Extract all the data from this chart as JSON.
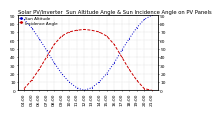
{
  "title": "Solar PV/Inverter  Sun Altitude Angle & Sun Incidence Angle on PV Panels",
  "x_hours": [
    "04:00",
    "05:00",
    "06:00",
    "07:00",
    "08:00",
    "09:00",
    "10:00",
    "11:00",
    "12:00",
    "13:00",
    "14:00",
    "15:00",
    "16:00",
    "17:00",
    "18:00",
    "19:00",
    "20:00",
    "21:00"
  ],
  "blue_values": [
    85,
    75,
    62,
    48,
    33,
    20,
    10,
    3,
    0,
    3,
    10,
    20,
    33,
    48,
    62,
    75,
    85,
    90
  ],
  "red_values": [
    2,
    12,
    25,
    40,
    55,
    65,
    70,
    72,
    73,
    72,
    70,
    65,
    55,
    40,
    25,
    12,
    2,
    0
  ],
  "blue_color": "#0000cc",
  "red_color": "#cc0000",
  "bg_color": "#ffffff",
  "grid_color": "#bbbbbb",
  "ylim_left": [
    0,
    90
  ],
  "ylim_right": [
    0,
    90
  ],
  "yticks_left": [
    0,
    10,
    20,
    30,
    40,
    50,
    60,
    70,
    80,
    90
  ],
  "yticks_right": [
    0,
    10,
    20,
    30,
    40,
    50,
    60,
    70,
    80,
    90
  ],
  "title_fontsize": 3.8,
  "tick_fontsize": 3.2,
  "legend_labels": [
    "Sun Altitude",
    "Incidence Angle"
  ],
  "legend_fontsize": 3.0
}
